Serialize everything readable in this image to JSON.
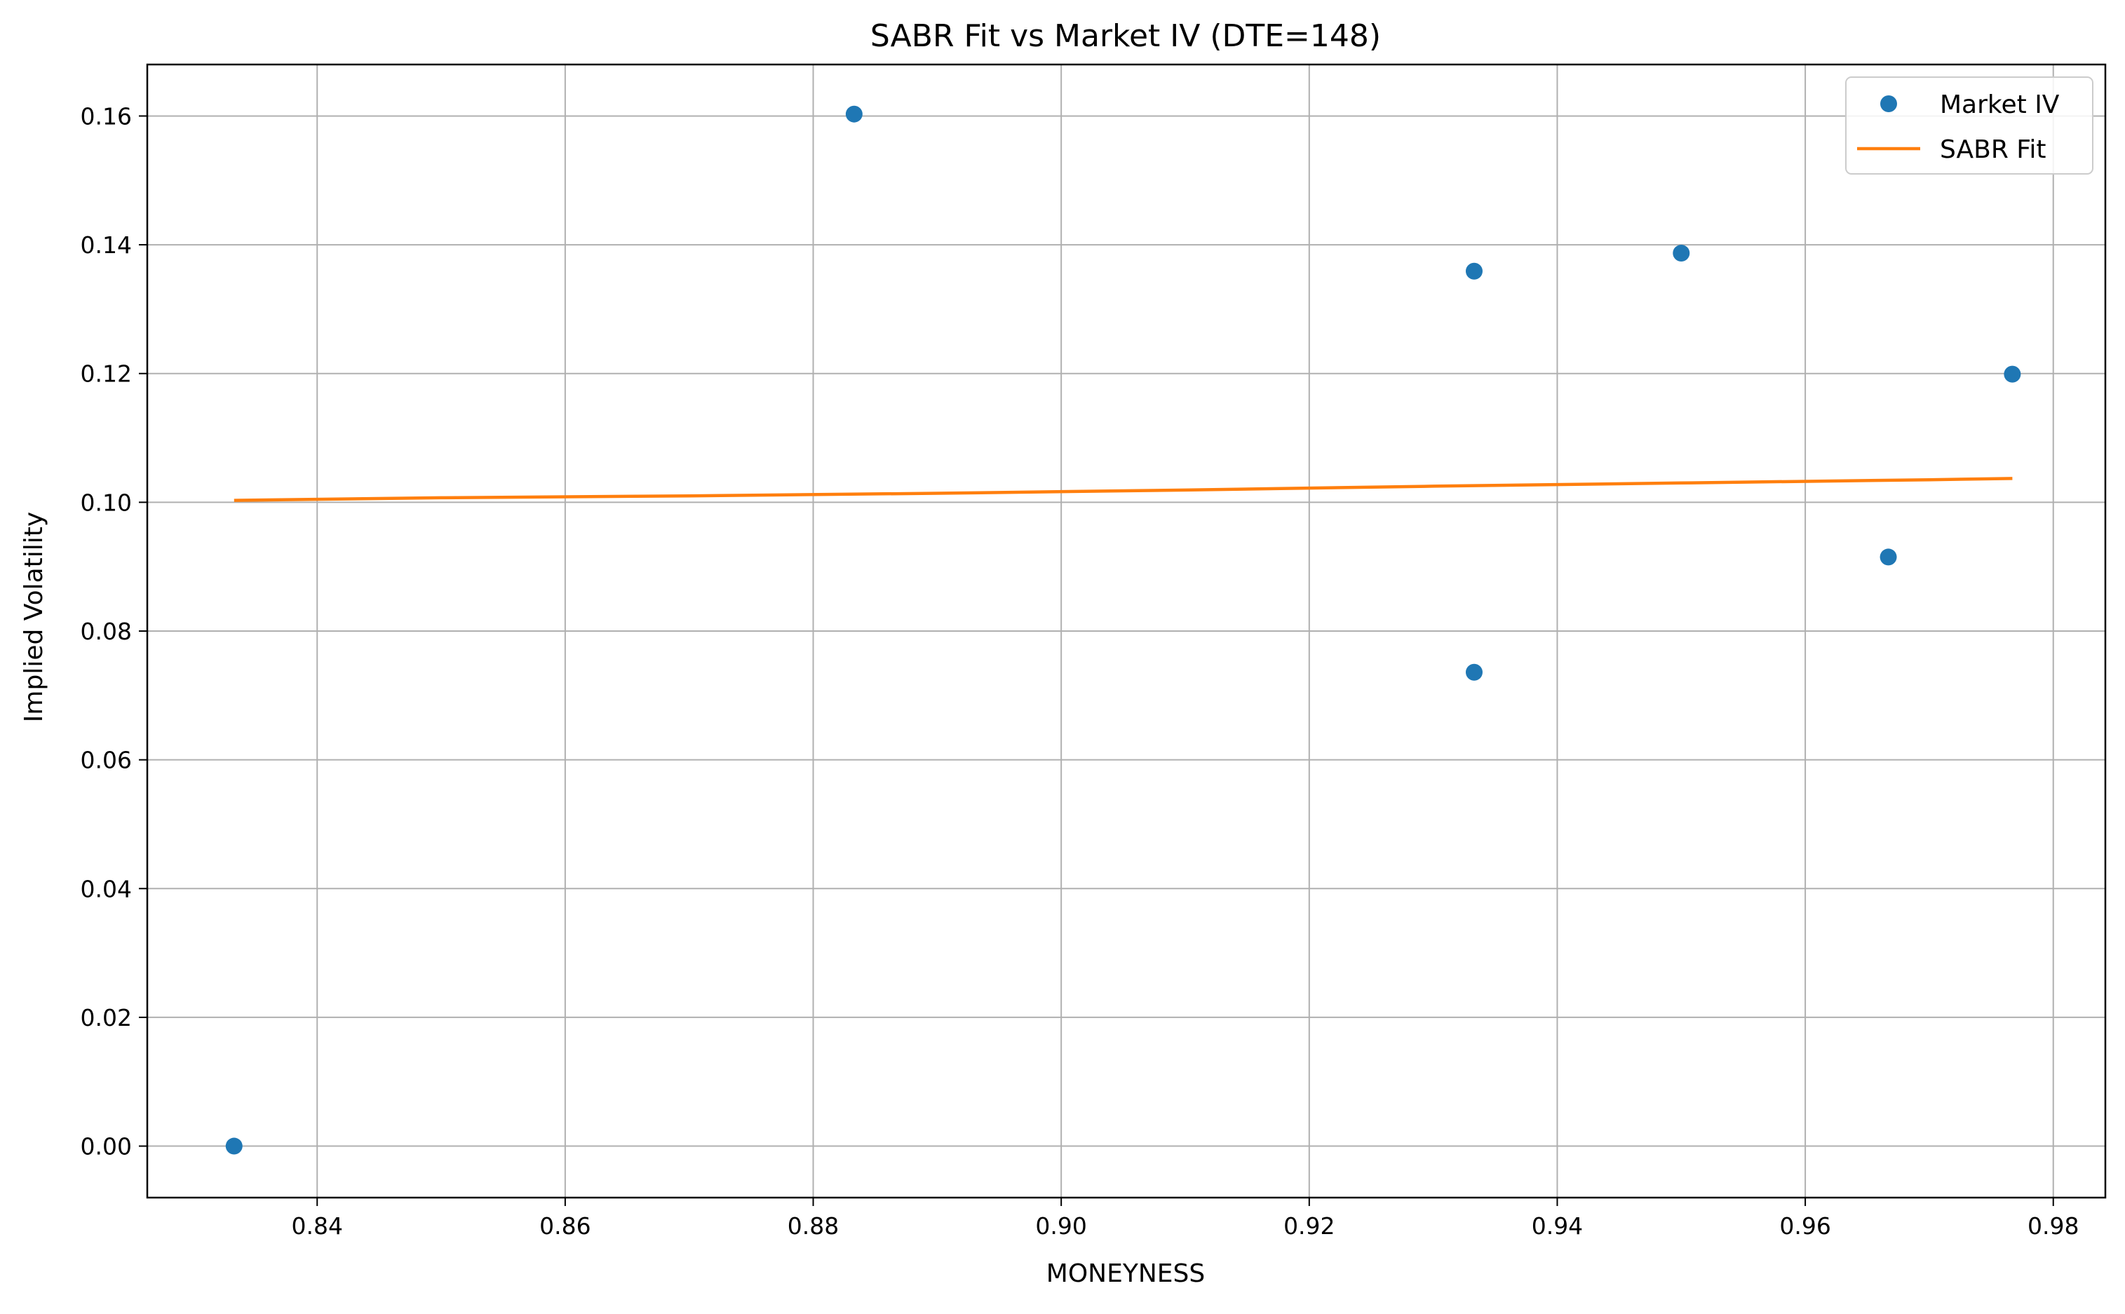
{
  "chart_data": {
    "type": "scatter",
    "title": "SABR Fit vs Market IV (DTE=148)",
    "xlabel": "MONEYNESS",
    "ylabel": "Implied Volatility",
    "xlim": [
      0.8263,
      0.9842
    ],
    "ylim": [
      -0.008,
      0.168
    ],
    "xticks": [
      0.84,
      0.86,
      0.88,
      0.9,
      0.92,
      0.94,
      0.96,
      0.98
    ],
    "xtick_labels": [
      "0.84",
      "0.86",
      "0.88",
      "0.90",
      "0.92",
      "0.94",
      "0.96",
      "0.98"
    ],
    "yticks": [
      0.0,
      0.02,
      0.04,
      0.06,
      0.08,
      0.1,
      0.12,
      0.14,
      0.16
    ],
    "ytick_labels": [
      "0.00",
      "0.02",
      "0.04",
      "0.06",
      "0.08",
      "0.10",
      "0.12",
      "0.14",
      "0.16"
    ],
    "grid": true,
    "legend_position": "top-right",
    "series": [
      {
        "name": "Market IV",
        "kind": "scatter",
        "color": "#1f77b4",
        "points": [
          {
            "x": 0.8333,
            "y": 0.0
          },
          {
            "x": 0.8833,
            "y": 0.1603
          },
          {
            "x": 0.9333,
            "y": 0.1359
          },
          {
            "x": 0.9333,
            "y": 0.0736
          },
          {
            "x": 0.95,
            "y": 0.1387
          },
          {
            "x": 0.9667,
            "y": 0.0915
          },
          {
            "x": 0.9767,
            "y": 0.1199
          }
        ]
      },
      {
        "name": "SABR Fit",
        "kind": "line",
        "color": "#ff7f0e",
        "points": [
          {
            "x": 0.8333,
            "y": 0.1003
          },
          {
            "x": 0.85,
            "y": 0.1007
          },
          {
            "x": 0.87,
            "y": 0.101
          },
          {
            "x": 0.89,
            "y": 0.1014
          },
          {
            "x": 0.91,
            "y": 0.1019
          },
          {
            "x": 0.93,
            "y": 0.1025
          },
          {
            "x": 0.95,
            "y": 0.103
          },
          {
            "x": 0.97,
            "y": 0.1035
          },
          {
            "x": 0.9767,
            "y": 0.1037
          }
        ]
      }
    ]
  }
}
